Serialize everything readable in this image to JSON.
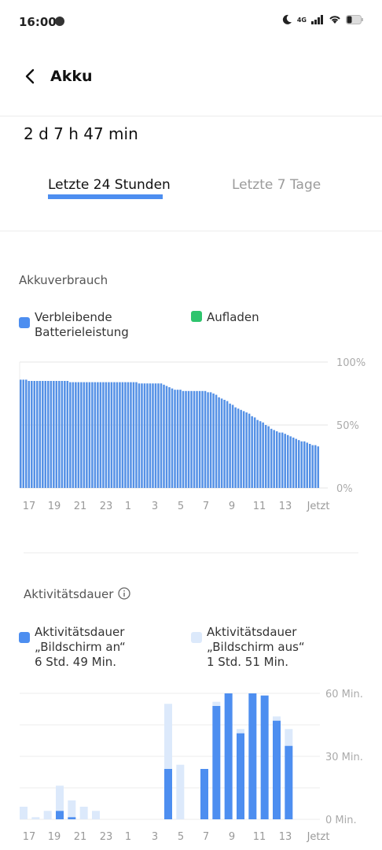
{
  "status_bar": {
    "time": "16:00",
    "network": "4G"
  },
  "header": {
    "title": "Akku"
  },
  "duration": "2 d 7 h 47 min",
  "tabs": [
    {
      "label": "Letzte 24 Stunden",
      "active": true
    },
    {
      "label": "Letzte 7 Tage",
      "active": false
    }
  ],
  "usage": {
    "title": "Akkuverbrauch",
    "legend": [
      {
        "label": "Verbleibende Batterieleistung",
        "color": "#4d8ef0"
      },
      {
        "label": "Aufladen",
        "color": "#2ec46d"
      }
    ]
  },
  "activity": {
    "title": "Aktivitätsdauer",
    "legend": [
      {
        "line1": "Aktivitätsdauer",
        "line2": "„Bildschirm an“",
        "line3": "6 Std. 49 Min.",
        "color": "#4d8ef0"
      },
      {
        "line1": "Aktivitätsdauer",
        "line2": "„Bildschirm aus“",
        "line3": "1 Std. 51 Min.",
        "color": "#dce9fb"
      }
    ]
  },
  "chart_data": [
    {
      "type": "bar",
      "title": "Akkuverbrauch",
      "y_ticks": [
        "100%",
        "50%",
        "0%"
      ],
      "x_ticks": [
        "17",
        "19",
        "21",
        "23",
        "1",
        "3",
        "5",
        "7",
        "9",
        "11",
        "13",
        "Jetzt"
      ],
      "ylim": [
        0,
        100
      ],
      "series": [
        {
          "name": "Verbleibende Batterieleistung",
          "values": [
            86,
            86,
            86,
            85,
            85,
            85,
            85,
            85,
            85,
            85,
            85,
            85,
            85,
            85,
            85,
            85,
            85,
            85,
            84,
            84,
            84,
            84,
            84,
            84,
            84,
            84,
            84,
            84,
            84,
            84,
            84,
            84,
            84,
            84,
            84,
            84,
            84,
            84,
            84,
            84,
            84,
            84,
            84,
            83,
            83,
            83,
            83,
            83,
            83,
            83,
            83,
            83,
            82,
            81,
            80,
            79,
            78,
            78,
            78,
            77,
            77,
            77,
            77,
            77,
            77,
            77,
            77,
            77,
            76,
            76,
            75,
            74,
            72,
            71,
            70,
            69,
            67,
            66,
            64,
            63,
            62,
            61,
            60,
            59,
            57,
            56,
            54,
            53,
            52,
            50,
            49,
            47,
            46,
            45,
            44,
            44,
            43,
            42,
            41,
            40,
            39,
            38,
            37,
            37,
            36,
            35,
            34,
            34,
            33
          ]
        }
      ]
    },
    {
      "type": "bar",
      "title": "Aktivitätsdauer",
      "y_ticks": [
        "60 Min.",
        "30 Min.",
        "0 Min."
      ],
      "x_ticks": [
        "17",
        "19",
        "21",
        "23",
        "1",
        "3",
        "5",
        "7",
        "9",
        "11",
        "13",
        "Jetzt"
      ],
      "ylim": [
        0,
        60
      ],
      "categories": [
        "16",
        "17",
        "18",
        "19",
        "20",
        "21",
        "22",
        "23",
        "0",
        "1",
        "2",
        "3",
        "4",
        "5",
        "6",
        "7",
        "8",
        "9",
        "10",
        "11",
        "12",
        "13",
        "14",
        "15"
      ],
      "series": [
        {
          "name": "Bildschirm an",
          "values": [
            0,
            0,
            0,
            4,
            1,
            0,
            0,
            0,
            0,
            0,
            0,
            0,
            24,
            0,
            0,
            24,
            54,
            60,
            41,
            60,
            59,
            47,
            35,
            0
          ]
        },
        {
          "name": "Bildschirm aus",
          "values": [
            6,
            1,
            4,
            12,
            8,
            6,
            4,
            0,
            0,
            0,
            0,
            0,
            31,
            26,
            0,
            0,
            2,
            0,
            2,
            0,
            0,
            2,
            8,
            0
          ]
        }
      ]
    }
  ]
}
